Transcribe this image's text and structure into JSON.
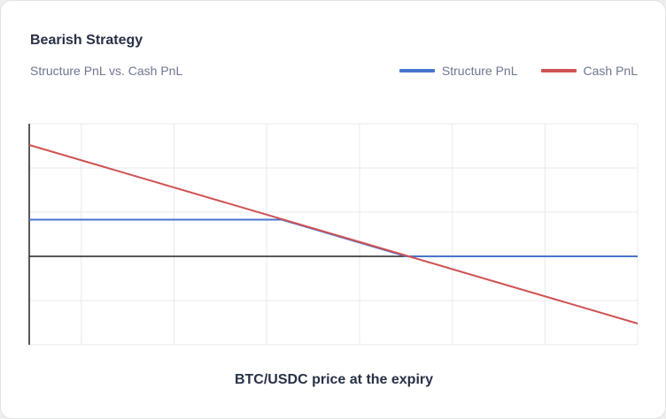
{
  "chart_data": {
    "type": "line",
    "title": "Bearish Strategy",
    "subtitle": "Structure PnL vs. Cash PnL",
    "xlabel": "BTC/USDC price at the expiry",
    "ylabel": "",
    "x_tick_labels": [],
    "y_tick_labels": [],
    "xlim": [
      0,
      100
    ],
    "ylim": [
      -2,
      3
    ],
    "grid": true,
    "legend_position": "top-right",
    "series": [
      {
        "name": "Structure PnL",
        "color": "#4a73cf",
        "x": [
          0,
          41.5,
          62,
          100
        ],
        "y": [
          0.83,
          0.83,
          0,
          0
        ]
      },
      {
        "name": "Cash PnL",
        "color": "#cf5252",
        "x": [
          0,
          100
        ],
        "y": [
          2.52,
          -1.52
        ]
      }
    ]
  }
}
